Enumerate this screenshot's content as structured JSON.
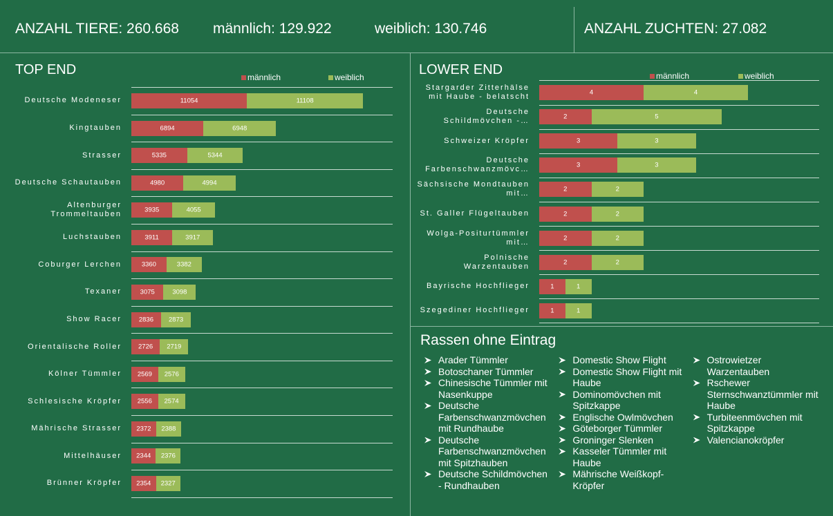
{
  "header": {
    "total": "ANZAHL TIERE: 260.668",
    "male": "männlich: 129.922",
    "female": "weiblich: 130.746",
    "breeds": "ANZAHL ZUCHTEN: 27.082"
  },
  "chart_data": [
    {
      "type": "bar",
      "orientation": "horizontal",
      "stacked": true,
      "title": "TOP END",
      "categories": [
        "Deutsche Modeneser",
        "Kingtauben",
        "Strasser",
        "Deutsche Schautauben",
        "Altenburger Trommeltauben",
        "Luchstauben",
        "Coburger Lerchen",
        "Texaner",
        "Show Racer",
        "Orientalische Roller",
        "Kölner Tümmler",
        "Schlesische Kröpfer",
        "Mährische Strasser",
        "Mittelhäuser",
        "Brünner Kröpfer"
      ],
      "series": [
        {
          "name": "männlich",
          "color": "#c0504d",
          "values": [
            11054,
            6894,
            5335,
            4980,
            3935,
            3911,
            3360,
            3075,
            2836,
            2726,
            2569,
            2556,
            2372,
            2344,
            2354
          ]
        },
        {
          "name": "weiblich",
          "color": "#9bbb59",
          "values": [
            11108,
            6948,
            5344,
            4994,
            4055,
            3917,
            3382,
            3098,
            2873,
            2719,
            2576,
            2574,
            2388,
            2376,
            2327
          ]
        }
      ],
      "xlim": [
        0,
        25000
      ],
      "legend": "top-right",
      "grid": true
    },
    {
      "type": "bar",
      "orientation": "horizontal",
      "stacked": true,
      "title": "LOWER END",
      "categories": [
        "Stargarder Zitterhälse mit Haube - belatscht",
        "Deutsche Schildmövchen -…",
        "Schweizer Kröpfer",
        "Deutsche Farbenschwanzmövc…",
        "Sächsische Mondtauben mit…",
        "St. Galler Flügeltauben",
        "Wolga-Positurtümmler mit…",
        "Polnische Warzentauben",
        "Bayrische Hochflieger",
        "Szegediner Hochflieger"
      ],
      "series": [
        {
          "name": "männlich",
          "color": "#c0504d",
          "values": [
            4,
            2,
            3,
            3,
            2,
            2,
            2,
            2,
            1,
            1
          ]
        },
        {
          "name": "weiblich",
          "color": "#9bbb59",
          "values": [
            4,
            5,
            3,
            3,
            2,
            2,
            2,
            2,
            1,
            1
          ]
        }
      ],
      "xlim": [
        0,
        10
      ],
      "legend": "top-right",
      "grid": true
    }
  ],
  "missing": {
    "title": "Rassen ohne Eintrag",
    "items": [
      "Arader Tümmler",
      "Botoschaner Tümmler",
      "Chinesische Tümmler mit Nasenkuppe",
      "Deutsche Farbenschwanzmövchen mit Rundhaube",
      "Deutsche Farbenschwanzmövchen mit Spitzhauben",
      "Deutsche Schildmövchen - Rundhauben",
      "Domestic Show Flight",
      "Domestic Show Flight mit Haube",
      "Dominomövchen mit Spitzkappe",
      "Englische Owlmövchen",
      "Göteborger Tümmler",
      "Groninger Slenken",
      "Kasseler Tümmler mit Haube",
      "Mährische Weißkopf-Kröpfer",
      "Ostrowietzer Warzentauben",
      "Rschewer Sternschwanztümmler mit Haube",
      "Turbiteenmövchen mit Spitzkappe",
      "Valencianokröpfer"
    ]
  }
}
